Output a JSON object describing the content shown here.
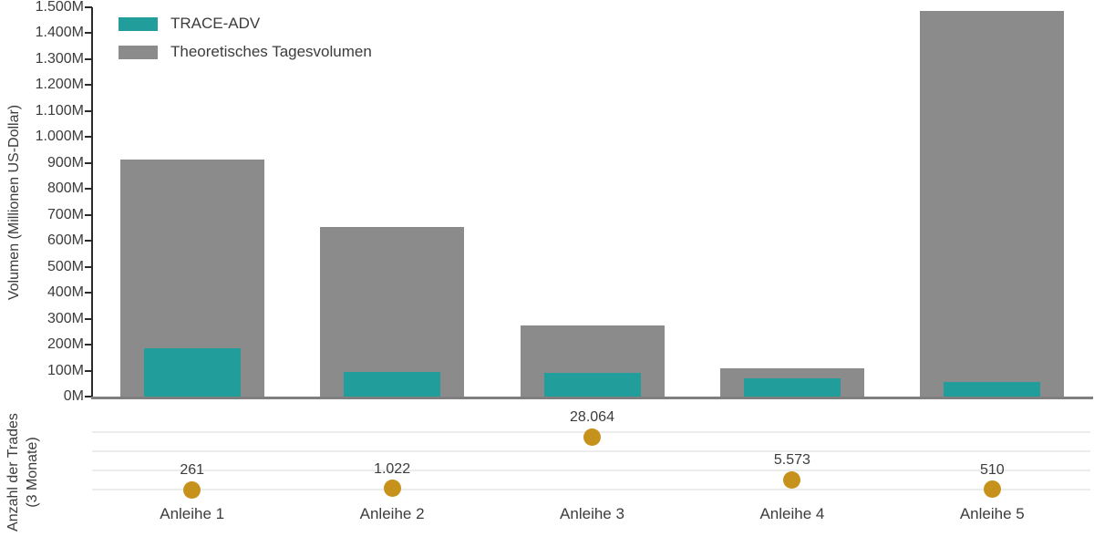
{
  "colors": {
    "trace_adv_teal": "#219E9C",
    "theoretical_gray": "#8C8B8C",
    "trades_dot_gold": "#C7921C",
    "text": "#3C3C3C",
    "axis_line": "#2B2B2B",
    "baseline": "#7F7F7F",
    "gridline": "#ECECEC"
  },
  "legend": {
    "items": [
      {
        "label": "TRACE-ADV",
        "color": "#219E9C"
      },
      {
        "label": "Theoretisches Tagesvolumen",
        "color": "#8C8B8C"
      }
    ]
  },
  "chart_data": [
    {
      "type": "bar",
      "title": "",
      "categories": [
        "Anleihe 1",
        "Anleihe 2",
        "Anleihe 3",
        "Anleihe 4",
        "Anleihe 5"
      ],
      "series": [
        {
          "name": "TRACE-ADV",
          "color": "#219E9C",
          "values": [
            185,
            95,
            90,
            70,
            55
          ]
        },
        {
          "name": "Theoretisches Tagesvolumen",
          "color": "#8C8B8C",
          "values": [
            915,
            655,
            275,
            110,
            1485
          ]
        }
      ],
      "xlabel": "",
      "ylabel": "Volumen (Millionen US-Dollar)",
      "ylim": [
        0,
        1500
      ],
      "ytick_values": [
        0,
        100,
        200,
        300,
        400,
        500,
        600,
        700,
        800,
        900,
        1000,
        1100,
        1200,
        1300,
        1400,
        1500
      ],
      "ytick_labels": [
        "0M",
        "100M",
        "200M",
        "300M",
        "400M",
        "500M",
        "600M",
        "700M",
        "800M",
        "900M",
        "1.000M",
        "1.100M",
        "1.200M",
        "1.300M",
        "1.400M",
        "1.500M"
      ],
      "legend_position": "top-left",
      "grid": false
    },
    {
      "type": "scatter",
      "name": "Anzahl der Trades (3 Monate)",
      "ylabel_line1": "Anzahl der Trades",
      "ylabel_line2": "(3 Monate)",
      "categories": [
        "Anleihe 1",
        "Anleihe 2",
        "Anleihe 3",
        "Anleihe 4",
        "Anleihe 5"
      ],
      "values": [
        261,
        1022,
        28064,
        5573,
        510
      ],
      "value_labels": [
        "261",
        "1.022",
        "28.064",
        "5.573",
        "510"
      ],
      "color": "#C7921C",
      "grid": true
    }
  ]
}
